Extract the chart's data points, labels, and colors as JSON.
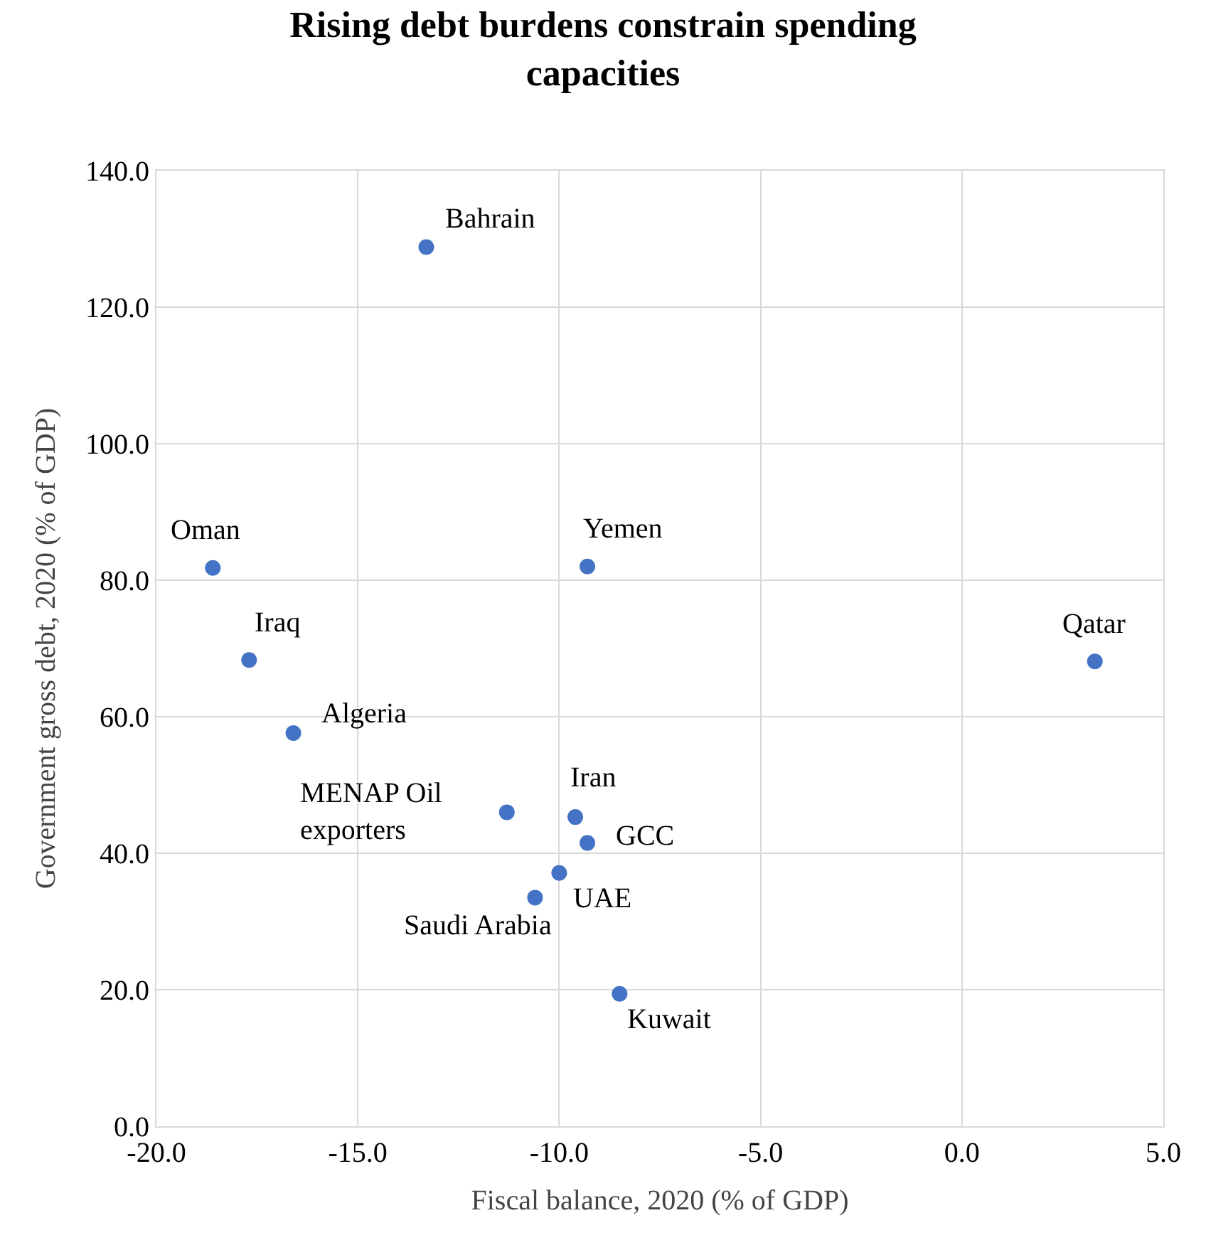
{
  "chart_data": {
    "type": "scatter",
    "title": "Rising debt burdens constrain spending capacities",
    "xlabel": "Fiscal balance, 2020 (% of GDP)",
    "ylabel": "Government gross debt, 2020 (% of GDP)",
    "x": [
      -13.3,
      -18.6,
      -17.7,
      -16.6,
      -11.3,
      -9.6,
      -9.3,
      -10.0,
      -10.6,
      -8.5,
      -9.3,
      3.3
    ],
    "series": [
      {
        "color": "#4472c4",
        "values": [
          128.8,
          81.8,
          68.3,
          57.6,
          46.0,
          45.3,
          41.5,
          37.1,
          33.5,
          19.4,
          82.0,
          68.1
        ]
      }
    ],
    "annotations": [
      {
        "text": "Bahrain",
        "x": -13.3,
        "y": 128.8
      },
      {
        "text": "Oman",
        "x": -18.6,
        "y": 81.8
      },
      {
        "text": "Iraq",
        "x": -17.7,
        "y": 68.3
      },
      {
        "text": "Algeria",
        "x": -16.6,
        "y": 57.6
      },
      {
        "text": "MENAP Oil\nexporters",
        "x": -11.3,
        "y": 46.0
      },
      {
        "text": "Iran",
        "x": -9.6,
        "y": 45.3
      },
      {
        "text": "GCC",
        "x": -9.3,
        "y": 41.5
      },
      {
        "text": "UAE",
        "x": -10.0,
        "y": 37.1
      },
      {
        "text": "Saudi Arabia",
        "x": -10.6,
        "y": 33.5
      },
      {
        "text": "Kuwait",
        "x": -8.5,
        "y": 19.4
      },
      {
        "text": "Yemen",
        "x": -9.3,
        "y": 82.0
      },
      {
        "text": "Qatar",
        "x": 3.3,
        "y": 68.1
      }
    ],
    "xlim": [
      -20,
      5
    ],
    "xticks": [
      {
        "value": -20,
        "label": "-20.0"
      },
      {
        "value": -15,
        "label": "-15.0"
      },
      {
        "value": -10,
        "label": "-10.0"
      },
      {
        "value": -5,
        "label": "-5.0"
      },
      {
        "value": 0,
        "label": "0.0"
      },
      {
        "value": 5,
        "label": "5.0"
      }
    ],
    "ylim": [
      0,
      140
    ],
    "yticks": [
      {
        "value": 0,
        "label": "0.0"
      },
      {
        "value": 20,
        "label": "20.0"
      },
      {
        "value": 40,
        "label": "40.0"
      },
      {
        "value": 60,
        "label": "60.0"
      },
      {
        "value": 80,
        "label": "80.0"
      },
      {
        "value": 100,
        "label": "100.0"
      },
      {
        "value": 120,
        "label": "120.0"
      },
      {
        "value": 140,
        "label": "140.0"
      }
    ],
    "grid": true,
    "marker": "circle"
  }
}
